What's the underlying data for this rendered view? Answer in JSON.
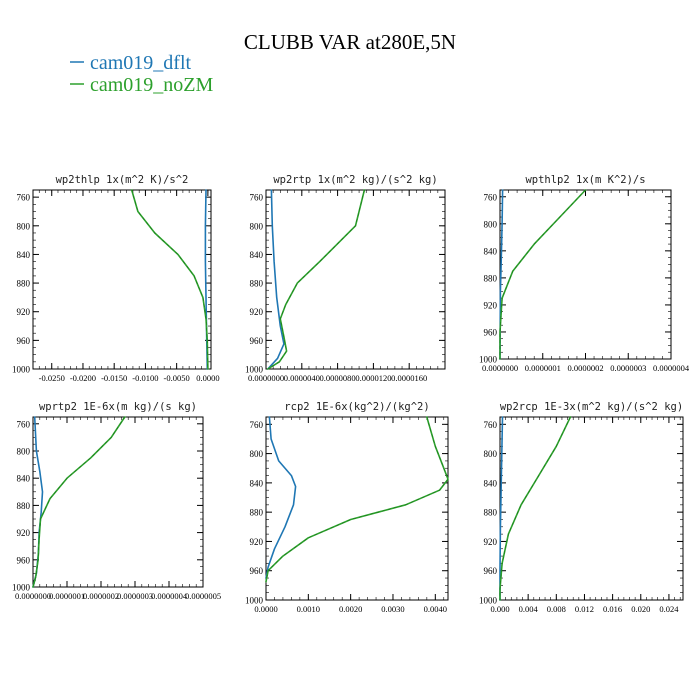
{
  "figure": {
    "title": "CLUBB VAR at280E,5N",
    "legend": [
      {
        "name": "cam019_dflt",
        "color": "#1f77b4"
      },
      {
        "name": "cam019_noZM",
        "color": "#2ca02c"
      }
    ]
  },
  "chart_data": [
    {
      "type": "line",
      "title": "wp2thlp  1x(m^2 K)/s^2",
      "ylim": [
        1000,
        750
      ],
      "yticks": [
        760,
        800,
        840,
        880,
        920,
        960,
        1000
      ],
      "xlim": [
        -0.028,
        0.0005
      ],
      "xticks": [
        -0.025,
        -0.02,
        -0.015,
        -0.01,
        -0.005,
        0
      ],
      "xtick_labels": [
        "-0.0250",
        "-0.0200",
        "-0.0150",
        "-0.0100",
        "-0.0050",
        "0.0000"
      ],
      "series": [
        {
          "name": "cam019_dflt",
          "color": "#1f77b4",
          "points": [
            [
              -0.0003,
              750
            ],
            [
              -0.0004,
              800
            ],
            [
              -0.0004,
              850
            ],
            [
              -0.0003,
              900
            ],
            [
              -0.0002,
              950
            ],
            [
              -0.0001,
              1000
            ]
          ]
        },
        {
          "name": "cam019_noZM",
          "color": "#2ca02c",
          "points": [
            [
              -0.0122,
              750
            ],
            [
              -0.0112,
              780
            ],
            [
              -0.0085,
              810
            ],
            [
              -0.0048,
              840
            ],
            [
              -0.0022,
              870
            ],
            [
              -0.0008,
              900
            ],
            [
              -0.0003,
              930
            ],
            [
              -0.0001,
              960
            ],
            [
              0,
              1000
            ]
          ]
        }
      ]
    },
    {
      "type": "line",
      "title": "wp2rtp  1x(m^2 kg)/(s^2 kg)",
      "ylim": [
        1000,
        750
      ],
      "yticks": [
        760,
        800,
        840,
        880,
        920,
        960,
        1000
      ],
      "xlim": [
        0,
        2e-05
      ],
      "xticks": [
        0,
        4e-06,
        8e-06,
        1.2e-05,
        1.6e-05
      ],
      "xtick_labels": [
        "0.0000000",
        "0.0000040",
        "0.0000080",
        "0.0000120",
        "0.0000160"
      ],
      "series": [
        {
          "name": "cam019_dflt",
          "color": "#1f77b4",
          "points": [
            [
              6e-07,
              750
            ],
            [
              7e-07,
              800
            ],
            [
              9e-07,
              850
            ],
            [
              1.2e-06,
              900
            ],
            [
              1.6e-06,
              940
            ],
            [
              2e-06,
              965
            ],
            [
              1.3e-06,
              985
            ],
            [
              2e-07,
              1000
            ]
          ]
        },
        {
          "name": "cam019_noZM",
          "color": "#2ca02c",
          "points": [
            [
              1.1e-05,
              750
            ],
            [
              1e-05,
              800
            ],
            [
              6e-06,
              850
            ],
            [
              3.5e-06,
              880
            ],
            [
              2.2e-06,
              910
            ],
            [
              1.6e-06,
              930
            ],
            [
              2e-06,
              955
            ],
            [
              2.3e-06,
              975
            ],
            [
              1.5e-06,
              990
            ],
            [
              2e-07,
              1000
            ]
          ]
        }
      ]
    },
    {
      "type": "line",
      "title": "wpthlp2  1x(m K^2)/s",
      "ylim": [
        1000,
        750
      ],
      "yticks": [
        760,
        800,
        840,
        880,
        920,
        960,
        1000
      ],
      "xlim": [
        0,
        4e-07
      ],
      "xticks": [
        0,
        1e-07,
        2e-07,
        3e-07,
        4e-07
      ],
      "xtick_labels": [
        "0.0000000",
        "0.0000001",
        "0.0000002",
        "0.0000003",
        "0.0000004"
      ],
      "series": [
        {
          "name": "cam019_dflt",
          "color": "#1f77b4",
          "points": [
            [
              6e-09,
              750
            ],
            [
              5e-09,
              800
            ],
            [
              3e-09,
              850
            ],
            [
              1e-09,
              900
            ],
            [
              0,
              1000
            ]
          ]
        },
        {
          "name": "cam019_noZM",
          "color": "#2ca02c",
          "points": [
            [
              2e-07,
              750
            ],
            [
              1.4e-07,
              790
            ],
            [
              8e-08,
              830
            ],
            [
              3e-08,
              870
            ],
            [
              5e-09,
              910
            ],
            [
              0,
              960
            ],
            [
              0,
              1000
            ]
          ]
        }
      ]
    },
    {
      "type": "line",
      "title": "wprtp2  1E-6x(m kg)/(s kg)",
      "ylim": [
        1000,
        750
      ],
      "yticks": [
        760,
        800,
        840,
        880,
        920,
        960,
        1000
      ],
      "xlim": [
        0,
        5e-07
      ],
      "xticks": [
        0,
        1e-07,
        2e-07,
        3e-07,
        4e-07,
        5e-07
      ],
      "xtick_labels": [
        "0.0000000",
        "0.0000001",
        "0.0000002",
        "0.0000003",
        "0.0000004",
        "0.0000005"
      ],
      "series": [
        {
          "name": "cam019_dflt",
          "color": "#1f77b4",
          "points": [
            [
              5e-09,
              750
            ],
            [
              1e-08,
              800
            ],
            [
              2e-08,
              830
            ],
            [
              2.8e-08,
              860
            ],
            [
              2.4e-08,
              890
            ],
            [
              1.8e-08,
              920
            ],
            [
              1.6e-08,
              950
            ],
            [
              1e-08,
              980
            ],
            [
              0,
              1000
            ]
          ]
        },
        {
          "name": "cam019_noZM",
          "color": "#2ca02c",
          "points": [
            [
              2.7e-07,
              750
            ],
            [
              2.3e-07,
              780
            ],
            [
              1.7e-07,
              810
            ],
            [
              1e-07,
              840
            ],
            [
              5e-08,
              870
            ],
            [
              2.2e-08,
              900
            ],
            [
              1.8e-08,
              930
            ],
            [
              1.5e-08,
              960
            ],
            [
              8e-09,
              985
            ],
            [
              0,
              1000
            ]
          ]
        }
      ]
    },
    {
      "type": "line",
      "title": "rcp2  1E-6x(kg^2)/(kg^2)",
      "ylim": [
        1000,
        750
      ],
      "yticks": [
        760,
        800,
        840,
        880,
        920,
        960,
        1000
      ],
      "xlim": [
        0,
        0.0043
      ],
      "xticks": [
        0,
        0.001,
        0.002,
        0.003,
        0.004
      ],
      "xtick_labels": [
        "0.0000",
        "0.0010",
        "0.0020",
        "0.0030",
        "0.0040"
      ],
      "series": [
        {
          "name": "cam019_dflt",
          "color": "#1f77b4",
          "points": [
            [
              8e-05,
              750
            ],
            [
              0.00012,
              780
            ],
            [
              0.0003,
              810
            ],
            [
              0.0006,
              830
            ],
            [
              0.0007,
              845
            ],
            [
              0.00065,
              870
            ],
            [
              0.00045,
              900
            ],
            [
              0.0002,
              930
            ],
            [
              5e-05,
              955
            ],
            [
              0,
              970
            ]
          ]
        },
        {
          "name": "cam019_noZM",
          "color": "#2ca02c",
          "points": [
            [
              0.0038,
              750
            ],
            [
              0.004,
              790
            ],
            [
              0.0042,
              820
            ],
            [
              0.0043,
              835
            ],
            [
              0.0041,
              850
            ],
            [
              0.0033,
              870
            ],
            [
              0.002,
              890
            ],
            [
              0.001,
              915
            ],
            [
              0.0004,
              940
            ],
            [
              5e-05,
              960
            ],
            [
              0,
              975
            ]
          ]
        }
      ]
    },
    {
      "type": "line",
      "title": "wp2rcp  1E-3x(m^2 kg)/(s^2 kg)",
      "ylim": [
        1000,
        750
      ],
      "yticks": [
        760,
        800,
        840,
        880,
        920,
        960,
        1000
      ],
      "xlim": [
        0,
        0.026
      ],
      "xticks": [
        0,
        0.004,
        0.008,
        0.012,
        0.016,
        0.02,
        0.024
      ],
      "xtick_labels": [
        "0.000",
        "0.004",
        "0.008",
        "0.012",
        "0.016",
        "0.020",
        "0.024"
      ],
      "series": [
        {
          "name": "cam019_dflt",
          "color": "#1f77b4",
          "points": [
            [
              0.00035,
              750
            ],
            [
              0.00025,
              800
            ],
            [
              0.00015,
              850
            ],
            [
              5e-05,
              900
            ],
            [
              0,
              960
            ],
            [
              0,
              1000
            ]
          ]
        },
        {
          "name": "cam019_noZM",
          "color": "#2ca02c",
          "points": [
            [
              0.01,
              750
            ],
            [
              0.008,
              790
            ],
            [
              0.0055,
              830
            ],
            [
              0.003,
              870
            ],
            [
              0.0012,
              910
            ],
            [
              0.0003,
              950
            ],
            [
              0,
              985
            ],
            [
              0,
              1000
            ]
          ]
        }
      ]
    }
  ]
}
